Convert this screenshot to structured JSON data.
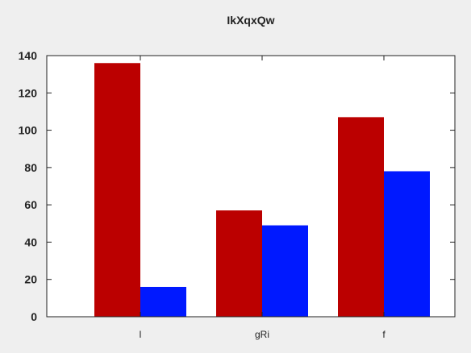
{
  "chart_data": {
    "type": "bar",
    "title": "IkXqxQw",
    "xlabel": "",
    "ylabel": "",
    "categories": [
      "l",
      "gRi",
      "f"
    ],
    "series": [
      {
        "values": [
          136,
          57,
          107
        ],
        "color": "#bb0000"
      },
      {
        "values": [
          16,
          49,
          78
        ],
        "color": "#0019ff"
      }
    ],
    "ylim": [
      0,
      140
    ],
    "yticks": [
      0,
      20,
      40,
      60,
      80,
      100,
      120,
      140
    ],
    "grid": false,
    "legend": "none"
  }
}
